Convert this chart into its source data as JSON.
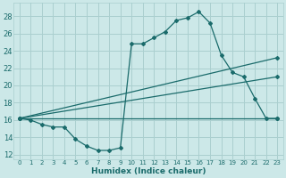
{
  "xlabel": "Humidex (Indice chaleur)",
  "bg_color": "#cce8e8",
  "grid_color": "#aacfcf",
  "line_color": "#1a6b6b",
  "xlim": [
    -0.5,
    23.5
  ],
  "ylim": [
    11.5,
    29.5
  ],
  "xticks": [
    0,
    1,
    2,
    3,
    4,
    5,
    6,
    7,
    8,
    9,
    10,
    11,
    12,
    13,
    14,
    15,
    16,
    17,
    18,
    19,
    20,
    21,
    22,
    23
  ],
  "yticks": [
    12,
    14,
    16,
    18,
    20,
    22,
    24,
    26,
    28
  ],
  "series1_x": [
    0,
    1,
    2,
    3,
    4,
    5,
    6,
    7,
    8,
    9,
    10,
    11,
    12,
    13,
    14,
    15,
    16,
    17,
    18,
    19,
    20,
    21,
    22,
    23
  ],
  "series1_y": [
    16.2,
    16.0,
    15.5,
    15.2,
    15.2,
    13.8,
    13.0,
    12.5,
    12.5,
    12.8,
    24.8,
    24.8,
    25.5,
    26.2,
    27.5,
    27.8,
    28.5,
    27.2,
    23.5,
    21.5,
    21.0,
    18.5,
    16.2,
    16.2
  ],
  "series2_x": [
    0,
    23
  ],
  "series2_y": [
    16.2,
    16.2
  ],
  "series3_x": [
    0,
    23
  ],
  "series3_y": [
    16.2,
    23.2
  ],
  "series4_x": [
    0,
    23
  ],
  "series4_y": [
    16.2,
    21.0
  ]
}
